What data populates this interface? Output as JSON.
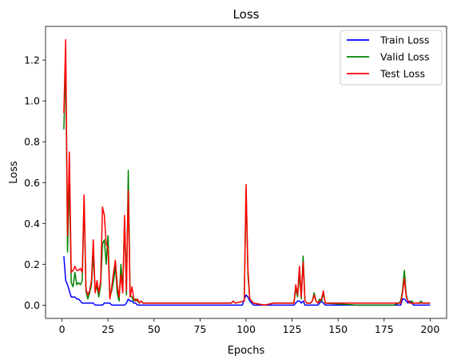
{
  "chart_data": {
    "type": "line",
    "title": "Loss",
    "xlabel": "Epochs",
    "ylabel": "Loss",
    "xlim": [
      -8.95,
      208.95
    ],
    "ylim": [
      -0.065,
      1.365
    ],
    "xticks": [
      0,
      25,
      50,
      75,
      100,
      125,
      150,
      175,
      200
    ],
    "yticks": [
      0.0,
      0.2,
      0.4,
      0.6,
      0.8,
      1.0,
      1.2
    ],
    "ytick_labels": [
      "0.0",
      "0.2",
      "0.4",
      "0.6",
      "0.8",
      "1.0",
      "1.2"
    ],
    "grid": false,
    "legend_position": "top-right",
    "series": [
      {
        "name": "Train Loss",
        "color": "#0000ff",
        "points": [
          [
            1,
            0.24
          ],
          [
            2,
            0.12
          ],
          [
            3,
            0.1
          ],
          [
            4,
            0.07
          ],
          [
            5,
            0.04
          ],
          [
            6,
            0.04
          ],
          [
            7,
            0.04
          ],
          [
            8,
            0.03
          ],
          [
            9,
            0.03
          ],
          [
            10,
            0.02
          ],
          [
            11,
            0.01
          ],
          [
            12,
            0.01
          ],
          [
            13,
            0.01
          ],
          [
            14,
            0.01
          ],
          [
            15,
            0.01
          ],
          [
            16,
            0.01
          ],
          [
            17,
            0.01
          ],
          [
            18,
            0.0
          ],
          [
            19,
            0.0
          ],
          [
            20,
            0.0
          ],
          [
            21,
            0.0
          ],
          [
            22,
            0.0
          ],
          [
            23,
            0.01
          ],
          [
            24,
            0.01
          ],
          [
            25,
            0.01
          ],
          [
            26,
            0.01
          ],
          [
            27,
            0.0
          ],
          [
            28,
            0.0
          ],
          [
            29,
            0.0
          ],
          [
            30,
            0.0
          ],
          [
            31,
            0.0
          ],
          [
            32,
            0.0
          ],
          [
            33,
            0.0
          ],
          [
            34,
            0.0
          ],
          [
            35,
            0.01
          ],
          [
            36,
            0.03
          ],
          [
            37,
            0.02
          ],
          [
            38,
            0.02
          ],
          [
            39,
            0.01
          ],
          [
            40,
            0.01
          ],
          [
            41,
            0.0
          ],
          [
            42,
            0.0
          ],
          [
            60,
            0.0
          ],
          [
            80,
            0.0
          ],
          [
            98,
            0.0
          ],
          [
            99,
            0.03
          ],
          [
            100,
            0.05
          ],
          [
            101,
            0.04
          ],
          [
            102,
            0.02
          ],
          [
            103,
            0.01
          ],
          [
            104,
            0.0
          ],
          [
            110,
            0.0
          ],
          [
            126,
            0.0
          ],
          [
            127,
            0.01
          ],
          [
            128,
            0.02
          ],
          [
            129,
            0.02
          ],
          [
            130,
            0.01
          ],
          [
            131,
            0.02
          ],
          [
            132,
            0.0
          ],
          [
            135,
            0.0
          ],
          [
            139,
            0.0
          ],
          [
            140,
            0.01
          ],
          [
            141,
            0.02
          ],
          [
            142,
            0.01
          ],
          [
            143,
            0.0
          ],
          [
            160,
            0.0
          ],
          [
            184,
            0.0
          ],
          [
            185,
            0.03
          ],
          [
            186,
            0.03
          ],
          [
            187,
            0.02
          ],
          [
            188,
            0.01
          ],
          [
            189,
            0.02
          ],
          [
            190,
            0.01
          ],
          [
            191,
            0.0
          ],
          [
            200,
            0.0
          ]
        ]
      },
      {
        "name": "Valid Loss",
        "color": "#008000",
        "points": [
          [
            1,
            0.86
          ],
          [
            2,
            1.19
          ],
          [
            3,
            0.26
          ],
          [
            4,
            0.62
          ],
          [
            5,
            0.11
          ],
          [
            6,
            0.09
          ],
          [
            7,
            0.16
          ],
          [
            8,
            0.1
          ],
          [
            9,
            0.11
          ],
          [
            10,
            0.1
          ],
          [
            11,
            0.12
          ],
          [
            12,
            0.52
          ],
          [
            13,
            0.07
          ],
          [
            14,
            0.03
          ],
          [
            15,
            0.06
          ],
          [
            16,
            0.1
          ],
          [
            17,
            0.25
          ],
          [
            18,
            0.07
          ],
          [
            19,
            0.09
          ],
          [
            20,
            0.04
          ],
          [
            21,
            0.1
          ],
          [
            22,
            0.3
          ],
          [
            23,
            0.32
          ],
          [
            24,
            0.2
          ],
          [
            25,
            0.34
          ],
          [
            26,
            0.04
          ],
          [
            27,
            0.07
          ],
          [
            28,
            0.12
          ],
          [
            29,
            0.19
          ],
          [
            30,
            0.06
          ],
          [
            31,
            0.02
          ],
          [
            32,
            0.2
          ],
          [
            33,
            0.08
          ],
          [
            34,
            0.42
          ],
          [
            35,
            0.05
          ],
          [
            36,
            0.66
          ],
          [
            37,
            0.05
          ],
          [
            38,
            0.04
          ],
          [
            39,
            0.02
          ],
          [
            40,
            0.03
          ],
          [
            41,
            0.02
          ],
          [
            42,
            0.01
          ],
          [
            43,
            0.02
          ],
          [
            44,
            0.01
          ],
          [
            60,
            0.01
          ],
          [
            80,
            0.01
          ],
          [
            92,
            0.01
          ],
          [
            93,
            0.02
          ],
          [
            94,
            0.01
          ],
          [
            99,
            0.02
          ],
          [
            100,
            0.57
          ],
          [
            101,
            0.15
          ],
          [
            102,
            0.03
          ],
          [
            103,
            0.02
          ],
          [
            104,
            0.01
          ],
          [
            110,
            0.0
          ],
          [
            115,
            0.01
          ],
          [
            126,
            0.01
          ],
          [
            127,
            0.08
          ],
          [
            128,
            0.04
          ],
          [
            129,
            0.15
          ],
          [
            130,
            0.03
          ],
          [
            131,
            0.24
          ],
          [
            132,
            0.02
          ],
          [
            133,
            0.01
          ],
          [
            135,
            0.01
          ],
          [
            136,
            0.02
          ],
          [
            137,
            0.06
          ],
          [
            138,
            0.02
          ],
          [
            139,
            0.01
          ],
          [
            140,
            0.03
          ],
          [
            141,
            0.02
          ],
          [
            142,
            0.06
          ],
          [
            143,
            0.01
          ],
          [
            160,
            0.0
          ],
          [
            180,
            0.0
          ],
          [
            183,
            0.01
          ],
          [
            184,
            0.02
          ],
          [
            185,
            0.07
          ],
          [
            186,
            0.17
          ],
          [
            187,
            0.05
          ],
          [
            188,
            0.02
          ],
          [
            189,
            0.01
          ],
          [
            190,
            0.02
          ],
          [
            191,
            0.01
          ],
          [
            194,
            0.01
          ],
          [
            195,
            0.02
          ],
          [
            196,
            0.01
          ],
          [
            200,
            0.01
          ]
        ]
      },
      {
        "name": "Test Loss",
        "color": "#ff0000",
        "points": [
          [
            1,
            0.94
          ],
          [
            2,
            1.3
          ],
          [
            3,
            0.34
          ],
          [
            4,
            0.75
          ],
          [
            5,
            0.16
          ],
          [
            6,
            0.17
          ],
          [
            7,
            0.19
          ],
          [
            8,
            0.17
          ],
          [
            9,
            0.17
          ],
          [
            10,
            0.18
          ],
          [
            11,
            0.16
          ],
          [
            12,
            0.54
          ],
          [
            13,
            0.08
          ],
          [
            14,
            0.05
          ],
          [
            15,
            0.07
          ],
          [
            16,
            0.12
          ],
          [
            17,
            0.32
          ],
          [
            18,
            0.06
          ],
          [
            19,
            0.12
          ],
          [
            20,
            0.06
          ],
          [
            21,
            0.12
          ],
          [
            22,
            0.48
          ],
          [
            23,
            0.44
          ],
          [
            24,
            0.3
          ],
          [
            25,
            0.28
          ],
          [
            26,
            0.03
          ],
          [
            27,
            0.09
          ],
          [
            28,
            0.16
          ],
          [
            29,
            0.22
          ],
          [
            30,
            0.1
          ],
          [
            31,
            0.04
          ],
          [
            32,
            0.15
          ],
          [
            33,
            0.06
          ],
          [
            34,
            0.44
          ],
          [
            35,
            0.07
          ],
          [
            36,
            0.56
          ],
          [
            37,
            0.04
          ],
          [
            38,
            0.09
          ],
          [
            39,
            0.03
          ],
          [
            40,
            0.02
          ],
          [
            41,
            0.03
          ],
          [
            42,
            0.01
          ],
          [
            43,
            0.02
          ],
          [
            44,
            0.01
          ],
          [
            60,
            0.01
          ],
          [
            80,
            0.01
          ],
          [
            92,
            0.01
          ],
          [
            93,
            0.02
          ],
          [
            94,
            0.01
          ],
          [
            99,
            0.02
          ],
          [
            100,
            0.59
          ],
          [
            101,
            0.18
          ],
          [
            102,
            0.03
          ],
          [
            103,
            0.02
          ],
          [
            104,
            0.01
          ],
          [
            110,
            0.0
          ],
          [
            115,
            0.01
          ],
          [
            126,
            0.01
          ],
          [
            127,
            0.1
          ],
          [
            128,
            0.05
          ],
          [
            129,
            0.19
          ],
          [
            130,
            0.04
          ],
          [
            131,
            0.21
          ],
          [
            132,
            0.02
          ],
          [
            133,
            0.01
          ],
          [
            135,
            0.01
          ],
          [
            136,
            0.02
          ],
          [
            137,
            0.05
          ],
          [
            138,
            0.02
          ],
          [
            139,
            0.01
          ],
          [
            140,
            0.02
          ],
          [
            141,
            0.03
          ],
          [
            142,
            0.07
          ],
          [
            143,
            0.01
          ],
          [
            160,
            0.01
          ],
          [
            180,
            0.01
          ],
          [
            184,
            0.01
          ],
          [
            185,
            0.06
          ],
          [
            186,
            0.13
          ],
          [
            187,
            0.04
          ],
          [
            188,
            0.02
          ],
          [
            189,
            0.01
          ],
          [
            190,
            0.01
          ],
          [
            200,
            0.01
          ]
        ]
      }
    ]
  }
}
